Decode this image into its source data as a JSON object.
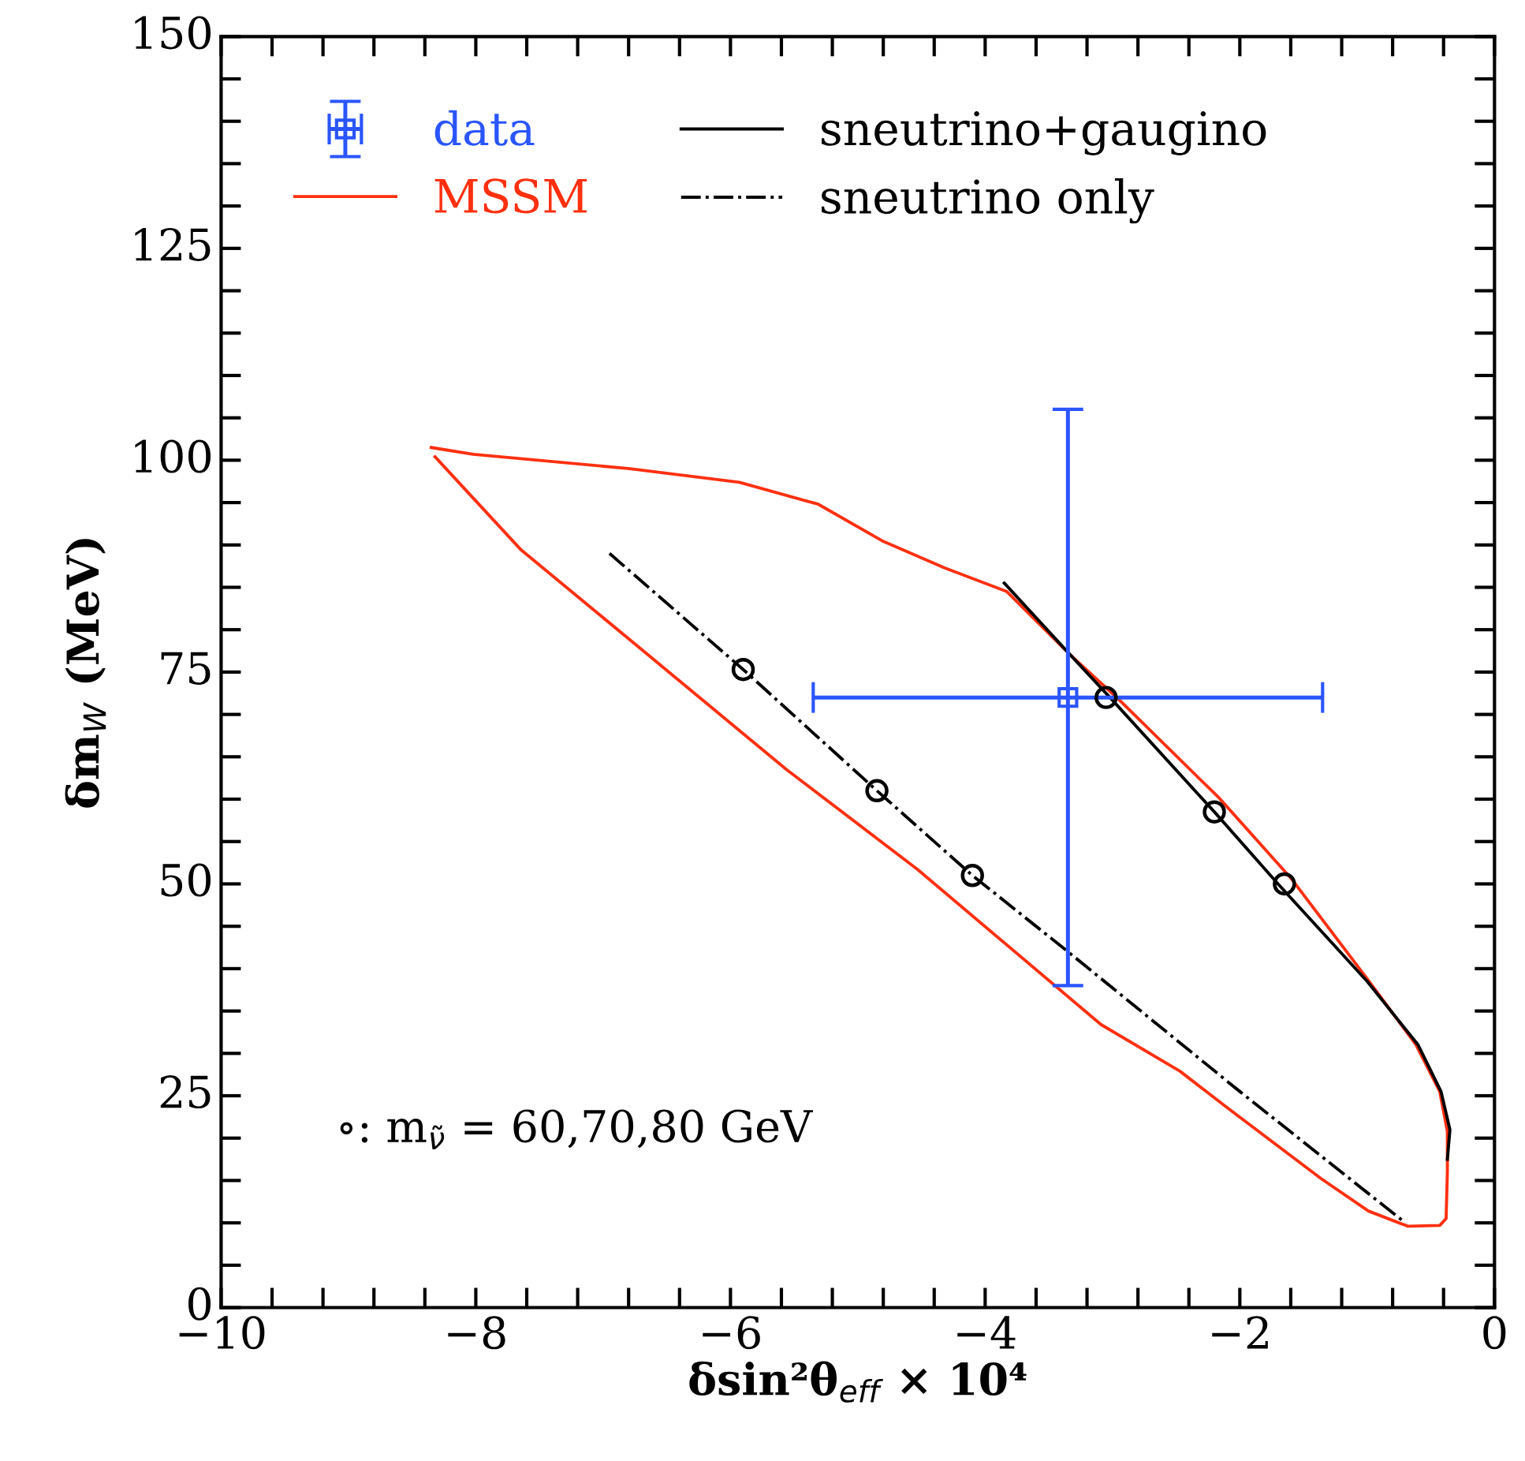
{
  "chart_data": {
    "type": "line",
    "xlabel": "δsin²θ$_{eff}$ × 10⁴",
    "ylabel": "δm$_{W}$ (MeV)",
    "xlim": [
      -10,
      0
    ],
    "xticks": [
      {
        "value": -10,
        "label": "−10"
      },
      {
        "value": -9.6,
        "label": null
      },
      {
        "value": -9.2,
        "label": null
      },
      {
        "value": -8.8,
        "label": null
      },
      {
        "value": -8.4,
        "label": null
      },
      {
        "value": -8,
        "label": "−8"
      },
      {
        "value": -7.6,
        "label": null
      },
      {
        "value": -7.2,
        "label": null
      },
      {
        "value": -6.8,
        "label": null
      },
      {
        "value": -6.4,
        "label": null
      },
      {
        "value": -6,
        "label": "−6"
      },
      {
        "value": -5.6,
        "label": null
      },
      {
        "value": -5.2,
        "label": null
      },
      {
        "value": -4.8,
        "label": null
      },
      {
        "value": -4.4,
        "label": null
      },
      {
        "value": -4,
        "label": "−4"
      },
      {
        "value": -3.6,
        "label": null
      },
      {
        "value": -3.2,
        "label": null
      },
      {
        "value": -2.8,
        "label": null
      },
      {
        "value": -2.4,
        "label": null
      },
      {
        "value": -2,
        "label": "−2"
      },
      {
        "value": -1.6,
        "label": null
      },
      {
        "value": -1.2,
        "label": null
      },
      {
        "value": -0.8,
        "label": null
      },
      {
        "value": -0.4,
        "label": null
      },
      0
    ],
    "ylim": [
      0,
      150
    ],
    "yticks": [
      0,
      {
        "value": 5,
        "label": null
      },
      {
        "value": 10,
        "label": null
      },
      {
        "value": 15,
        "label": null
      },
      {
        "value": 20,
        "label": null
      },
      25,
      {
        "value": 30,
        "label": null
      },
      {
        "value": 35,
        "label": null
      },
      {
        "value": 40,
        "label": null
      },
      {
        "value": 45,
        "label": null
      },
      50,
      {
        "value": 55,
        "label": null
      },
      {
        "value": 60,
        "label": null
      },
      {
        "value": 65,
        "label": null
      },
      {
        "value": 70,
        "label": null
      },
      75,
      {
        "value": 80,
        "label": null
      },
      {
        "value": 85,
        "label": null
      },
      {
        "value": 90,
        "label": null
      },
      {
        "value": 95,
        "label": null
      },
      100,
      {
        "value": 105,
        "label": null
      },
      {
        "value": 110,
        "label": null
      },
      {
        "value": 115,
        "label": null
      },
      {
        "value": 120,
        "label": null
      },
      125,
      {
        "value": 130,
        "label": null
      },
      {
        "value": 135,
        "label": null
      },
      {
        "value": 140,
        "label": null
      },
      {
        "value": 145,
        "label": null
      },
      150
    ],
    "grid": false,
    "legend": "top left",
    "annotations": [
      "∘: m$_{ν̃}$ = 60,70,80 GeV"
    ],
    "series": [
      {
        "name": "data",
        "type": "scatter",
        "color": "#2a55ff",
        "marker": "square",
        "x": [
          -3.35
        ],
        "values": [
          72
        ],
        "errors": [
          34
        ],
        "xerrors": [
          2.0
        ]
      },
      {
        "name": "MSSM",
        "color": "#ff3010",
        "line_style": "solid",
        "x": [
          -8.35,
          -8.02,
          -6.79,
          -5.93,
          -5.31,
          -4.81,
          -4.32,
          -3.83,
          -3.33,
          -2.96,
          -2.16,
          -1.6,
          -0.99,
          -0.62,
          -0.43,
          -0.37,
          -0.37,
          -0.38,
          -0.43,
          -0.68,
          -0.99,
          -1.36,
          -2.1,
          -2.47,
          -3.09,
          -4.53,
          -5.56,
          -6.79,
          -7.65,
          -8.32
        ],
        "values": [
          101.5,
          100.7,
          99,
          97.4,
          94.8,
          90.5,
          87.3,
          84.5,
          77,
          71.9,
          60.1,
          50.7,
          38.6,
          31.1,
          25.5,
          20.8,
          16.1,
          10.5,
          9.7,
          9.6,
          11.4,
          15.2,
          23.6,
          27.9,
          33.4,
          51.7,
          63.5,
          78.8,
          89.5,
          100.4
        ]
      },
      {
        "name": "sneutrino+gaugino",
        "color": "#000000",
        "line_style": "solid",
        "x": [
          -3.85,
          -3.33,
          -3.02,
          -2.2,
          -1.7,
          -1.0,
          -0.6,
          -0.42,
          -0.35,
          -0.37
        ],
        "values": [
          85.5,
          77,
          72,
          58.5,
          50,
          38.5,
          31,
          25.5,
          21,
          17.5
        ]
      },
      {
        "name": "sneutrino only",
        "color": "#000000",
        "line_style": "dashdot",
        "x": [
          -6.95,
          -5.9,
          -4.85,
          -4.1,
          -3.35,
          -2.0,
          -0.7
        ],
        "values": [
          89,
          75.3,
          61,
          51,
          42,
          25.5,
          10
        ]
      },
      {
        "type": "scatter",
        "color": "#000000",
        "marker": "circle",
        "x": [
          -5.9,
          -4.85,
          -4.1,
          -3.05,
          -2.2,
          -1.65
        ],
        "values": [
          75.3,
          61,
          51,
          72,
          58.5,
          50
        ]
      }
    ]
  }
}
